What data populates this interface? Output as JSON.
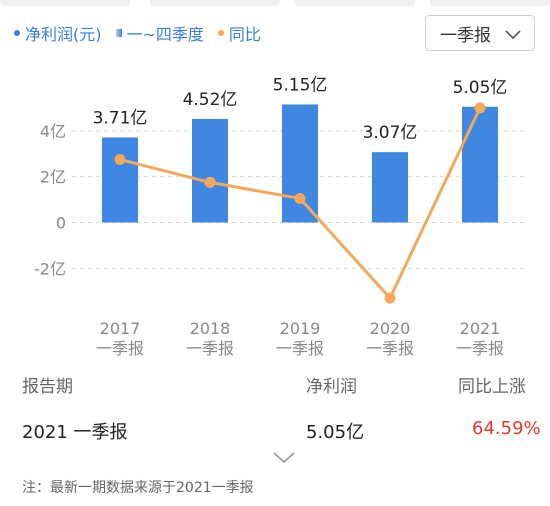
{
  "legend": {
    "net_profit": "净利润(元)",
    "quarters": "一~四季度",
    "yoy": "同比",
    "colors": {
      "bar": "#3f87e0",
      "line": "#f5a85a",
      "legend_text": "#3a7fd5",
      "up": "#e0392b"
    }
  },
  "dropdown": {
    "value": "一季报",
    "icon": "chevron-down-icon"
  },
  "chart_data": {
    "type": "bar",
    "categories": [
      "2017\n一季报",
      "2018\n一季报",
      "2019\n一季报",
      "2020\n一季报",
      "2021\n一季报"
    ],
    "series": [
      {
        "type": "bar",
        "values": [
          3.71,
          4.52,
          5.15,
          3.07,
          5.05
        ],
        "value_labels": [
          "3.71亿",
          "4.52亿",
          "5.15亿",
          "3.07亿",
          "5.05亿"
        ]
      },
      {
        "type": "line",
        "values_pixel_free_relative": [
          2.75,
          1.75,
          1.05,
          -3.3,
          5.0
        ]
      }
    ],
    "y_ticks": [
      4,
      2,
      0,
      -2
    ],
    "y_tick_labels": [
      "4亿",
      "2亿",
      "0",
      "-2亿"
    ],
    "ylim": [
      -3.6,
      6.0
    ],
    "grid": true
  },
  "table": {
    "headers": {
      "period": "报告期",
      "profit": "净利润",
      "yoy": "同比上涨"
    },
    "row": {
      "period": "2021 一季报",
      "profit": "5.05亿",
      "yoy": "64.59%"
    }
  },
  "note": "注：最新一期数据来源于2021一季报"
}
